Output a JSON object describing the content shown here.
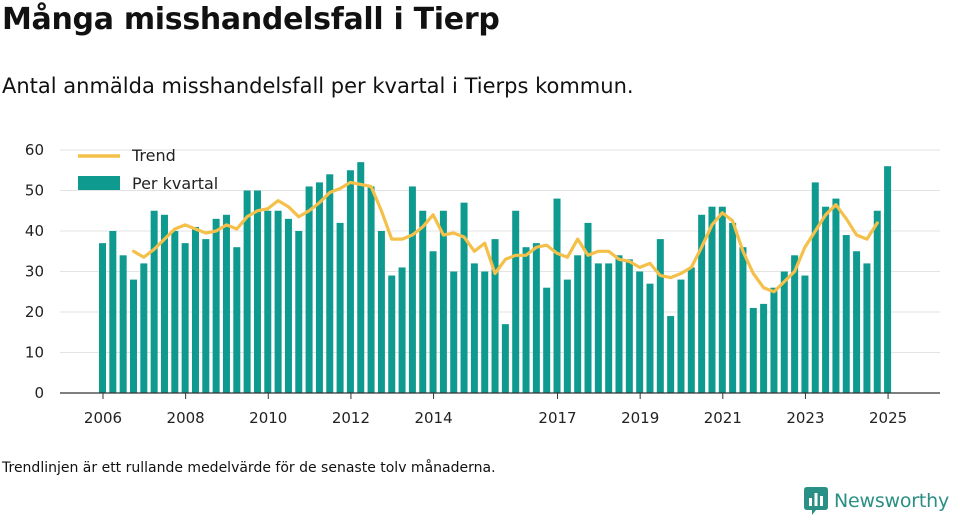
{
  "title": "Många misshandelsfall i Tierp",
  "subtitle": "Antal anmälda misshandelsfall per kvartal i Tierps kommun.",
  "footnote": "Trendlinjen är ett rullande medelvärde för de senaste tolv månaderna.",
  "brand": {
    "name": "Newsworthy",
    "color": "#2a8f84"
  },
  "chart_data": {
    "type": "bar",
    "ylim": [
      0,
      60
    ],
    "yticks": [
      0,
      10,
      20,
      30,
      40,
      50,
      60
    ],
    "xticks": [
      "2006",
      "2008",
      "2010",
      "2012",
      "2014",
      "2017",
      "2019",
      "2021",
      "2023",
      "2025"
    ],
    "grid": true,
    "legend_position": "top-left",
    "colors": {
      "bars": "#0e9a8f",
      "trend": "#f5c04a"
    },
    "series": [
      {
        "name": "Per kvartal",
        "kind": "bar",
        "x_start": "2006 Q1",
        "values": [
          37,
          40,
          34,
          28,
          32,
          45,
          44,
          40,
          37,
          41,
          38,
          43,
          44,
          36,
          50,
          50,
          45,
          45,
          43,
          40,
          51,
          52,
          54,
          42,
          55,
          57,
          51,
          40,
          29,
          31,
          51,
          45,
          35,
          45,
          30,
          47,
          32,
          30,
          38,
          17,
          45,
          36,
          37,
          26,
          48,
          28,
          34,
          42,
          32,
          32,
          34,
          33,
          30,
          27,
          38,
          19,
          28,
          31,
          44,
          46,
          46,
          42,
          36,
          21,
          22,
          26,
          30,
          34,
          29,
          52,
          46,
          48,
          39,
          35,
          32,
          45,
          56
        ]
      },
      {
        "name": "Trend",
        "kind": "line",
        "start_index": 3,
        "values": [
          35,
          33.5,
          35.5,
          38,
          40.5,
          41.5,
          40.5,
          39.5,
          40,
          41.5,
          40.5,
          43.5,
          45,
          45.5,
          47.5,
          46,
          43.5,
          45,
          47,
          49.5,
          50.5,
          52,
          51.5,
          51,
          45,
          38,
          38,
          39,
          41,
          44,
          39,
          39.5,
          38.5,
          35,
          37,
          29.5,
          33,
          34,
          34,
          36,
          36.5,
          34.5,
          33.5,
          38,
          34,
          35,
          35,
          33,
          32.5,
          31,
          32,
          29,
          28.5,
          29.5,
          31,
          36,
          41.5,
          44.5,
          42.5,
          35,
          29.5,
          26,
          25,
          27.5,
          30,
          36,
          40,
          44,
          46.5,
          43,
          39,
          38,
          42
        ]
      }
    ]
  }
}
